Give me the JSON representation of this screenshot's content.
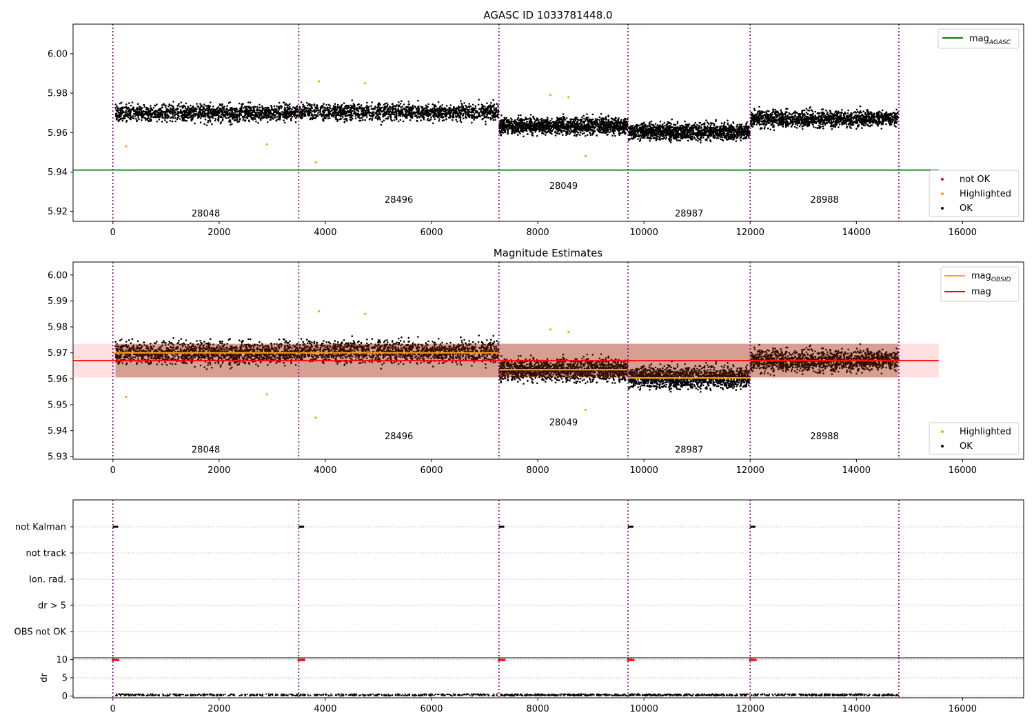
{
  "chart_data": [
    {
      "type": "scatter",
      "title": "AGASC ID 1033781448.0",
      "xlim": [
        -750,
        17150
      ],
      "ylim": [
        5.915,
        6.015
      ],
      "x_ticks": [
        0,
        2000,
        4000,
        6000,
        8000,
        10000,
        12000,
        14000,
        16000
      ],
      "y_ticks": [
        5.92,
        5.94,
        5.96,
        5.98,
        6.0
      ],
      "y_tick_labels": [
        "5.92",
        "5.94",
        "5.96",
        "5.98",
        "6.00"
      ],
      "obsid_boundaries": [
        0,
        3500,
        7270,
        9700,
        12000,
        14800
      ],
      "obsids": [
        {
          "label": "28048",
          "x": 1750,
          "y": 5.9175
        },
        {
          "label": "28496",
          "x": 5385,
          "y": 5.9245
        },
        {
          "label": "28049",
          "x": 8485,
          "y": 5.9315
        },
        {
          "label": "28987",
          "x": 10850,
          "y": 5.9175
        },
        {
          "label": "28988",
          "x": 13400,
          "y": 5.9245
        }
      ],
      "segments": [
        {
          "x_start": 50,
          "x_end": 3490,
          "center": 5.97,
          "spread": 0.0075
        },
        {
          "x_start": 3510,
          "x_end": 7260,
          "center": 5.9705,
          "spread": 0.0075
        },
        {
          "x_start": 7280,
          "x_end": 9690,
          "center": 5.9635,
          "spread": 0.0075
        },
        {
          "x_start": 9710,
          "x_end": 11990,
          "center": 5.9605,
          "spread": 0.0075
        },
        {
          "x_start": 12010,
          "x_end": 14790,
          "center": 5.967,
          "spread": 0.0075
        }
      ],
      "highlighted_points": [
        {
          "x": 250,
          "y": 5.953
        },
        {
          "x": 2900,
          "y": 5.954
        },
        {
          "x": 3820,
          "y": 5.945
        },
        {
          "x": 3880,
          "y": 5.986
        },
        {
          "x": 4750,
          "y": 5.985
        },
        {
          "x": 8240,
          "y": 5.979
        },
        {
          "x": 8580,
          "y": 5.978
        },
        {
          "x": 8900,
          "y": 5.948
        }
      ],
      "series": [
        {
          "name": "mag_AGASC",
          "type": "hline",
          "y": 5.941,
          "x_range": [
            -750,
            15550
          ],
          "color": "#008000"
        }
      ],
      "legends": [
        {
          "position": "upper-right",
          "entries": [
            {
              "kind": "line",
              "color": "#008000",
              "label": "mag",
              "sub": "AGASC"
            }
          ]
        },
        {
          "position": "lower-right",
          "entries": [
            {
              "kind": "dot",
              "color": "#ff0000",
              "label": "not OK"
            },
            {
              "kind": "dot",
              "color": "#ffa500",
              "label": "Highlighted"
            },
            {
              "kind": "dot",
              "color": "#000000",
              "label": "OK"
            }
          ]
        }
      ]
    },
    {
      "type": "scatter",
      "title": "Magnitude Estimates",
      "xlim": [
        -750,
        17150
      ],
      "ylim": [
        5.929,
        6.005
      ],
      "x_ticks": [
        0,
        2000,
        4000,
        6000,
        8000,
        10000,
        12000,
        14000,
        16000
      ],
      "y_ticks": [
        5.93,
        5.94,
        5.95,
        5.96,
        5.97,
        5.98,
        5.99,
        6.0
      ],
      "y_tick_labels": [
        "5.93",
        "5.94",
        "5.95",
        "5.96",
        "5.97",
        "5.98",
        "5.99",
        "6.00"
      ],
      "obsid_boundaries": [
        0,
        3500,
        7270,
        9700,
        12000,
        14800
      ],
      "obsids": [
        {
          "label": "28048",
          "x": 1750,
          "y": 5.9315
        },
        {
          "label": "28496",
          "x": 5385,
          "y": 5.9367
        },
        {
          "label": "28049",
          "x": 8485,
          "y": 5.942
        },
        {
          "label": "28987",
          "x": 10850,
          "y": 5.9315
        },
        {
          "label": "28988",
          "x": 13400,
          "y": 5.9367
        }
      ],
      "segments": [
        {
          "x_start": 50,
          "x_end": 3490,
          "center": 5.97,
          "spread": 0.0075
        },
        {
          "x_start": 3510,
          "x_end": 7260,
          "center": 5.9705,
          "spread": 0.0075
        },
        {
          "x_start": 7280,
          "x_end": 9690,
          "center": 5.9635,
          "spread": 0.0075
        },
        {
          "x_start": 9710,
          "x_end": 11990,
          "center": 5.9605,
          "spread": 0.0075
        },
        {
          "x_start": 12010,
          "x_end": 14790,
          "center": 5.967,
          "spread": 0.0075
        }
      ],
      "highlighted_points": [
        {
          "x": 250,
          "y": 5.953
        },
        {
          "x": 2900,
          "y": 5.954
        },
        {
          "x": 3820,
          "y": 5.945
        },
        {
          "x": 3880,
          "y": 5.986
        },
        {
          "x": 4750,
          "y": 5.985
        },
        {
          "x": 8240,
          "y": 5.979
        },
        {
          "x": 8580,
          "y": 5.978
        },
        {
          "x": 8900,
          "y": 5.948
        }
      ],
      "obs_mag_lines": [
        {
          "x_start": 0,
          "x_end": 7270,
          "y": 5.97
        },
        {
          "x_start": 7270,
          "x_end": 9700,
          "y": 5.9635
        },
        {
          "x_start": 9700,
          "x_end": 12000,
          "y": 5.9603
        },
        {
          "x_start": 12000,
          "x_end": 14800,
          "y": 5.967
        }
      ],
      "mag": {
        "y": 5.967,
        "band": [
          5.9605,
          5.9735
        ],
        "x_range": [
          -750,
          15550
        ]
      },
      "legends": [
        {
          "position": "upper-right",
          "entries": [
            {
              "kind": "line",
              "color": "#ffa500",
              "label": "mag",
              "sub": "OBSID"
            },
            {
              "kind": "line",
              "color": "#ff0000",
              "label": "mag"
            }
          ]
        },
        {
          "position": "lower-right",
          "entries": [
            {
              "kind": "dot",
              "color": "#ffa500",
              "label": "Highlighted"
            },
            {
              "kind": "dot",
              "color": "#000000",
              "label": "OK"
            }
          ]
        }
      ]
    },
    {
      "type": "scatter",
      "title": "",
      "xlim": [
        -750,
        17150
      ],
      "flag_rows": [
        "not Kalman",
        "not track",
        "Ion. rad.",
        "dr > 5",
        "OBS not OK"
      ],
      "flag_points": [
        {
          "row": "not Kalman",
          "x_start": 0,
          "x_end": 100
        },
        {
          "row": "not Kalman",
          "x_start": 3500,
          "x_end": 3600
        },
        {
          "row": "not Kalman",
          "x_start": 7270,
          "x_end": 7370
        },
        {
          "row": "not Kalman",
          "x_start": 9700,
          "x_end": 9800
        },
        {
          "row": "not Kalman",
          "x_start": 12000,
          "x_end": 12100
        }
      ],
      "obsid_boundaries": [
        0,
        3500,
        7270,
        9700,
        12000,
        14800
      ]
    },
    {
      "type": "scatter",
      "title": "",
      "ylabel": "dr",
      "xlim": [
        -750,
        17150
      ],
      "ylim": [
        -0.5,
        10.5
      ],
      "x_ticks": [
        0,
        2000,
        4000,
        6000,
        8000,
        10000,
        12000,
        14000,
        16000
      ],
      "y_ticks": [
        0,
        5,
        10
      ],
      "y_tick_labels": [
        "0",
        "5",
        "10"
      ],
      "obsid_boundaries": [
        0,
        3500,
        7270,
        9700,
        12000,
        14800
      ],
      "clipped_points": [
        {
          "x_start": 0,
          "x_end": 100,
          "y": 10
        },
        {
          "x_start": 3500,
          "x_end": 3600,
          "y": 10
        },
        {
          "x_start": 7270,
          "x_end": 7370,
          "y": 10
        },
        {
          "x_start": 9700,
          "x_end": 9800,
          "y": 10
        },
        {
          "x_start": 12000,
          "x_end": 12100,
          "y": 10
        }
      ],
      "dr_level": 0.3
    }
  ]
}
